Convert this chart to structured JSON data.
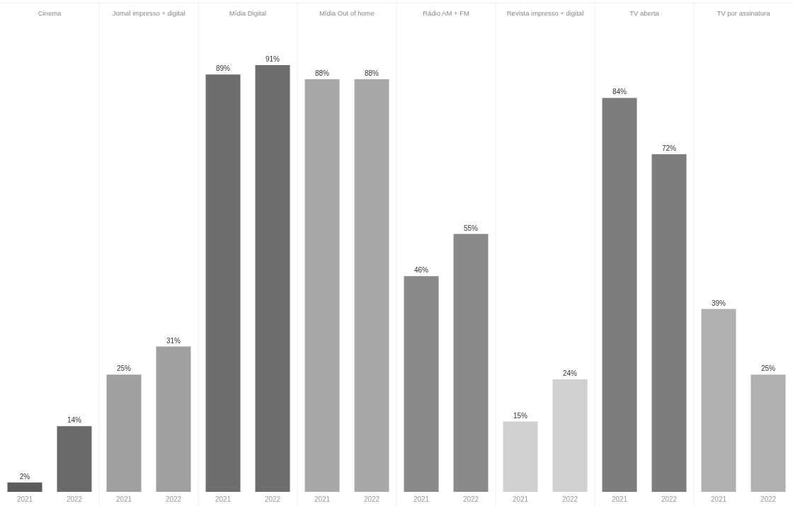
{
  "chart_data": [
    {
      "type": "bar",
      "title": "Cinema",
      "categories": [
        "2021",
        "2022"
      ],
      "values": [
        2,
        14
      ],
      "value_labels": [
        "2%",
        "14%"
      ],
      "colors": [
        "#5c5c5c",
        "#6a6a6a"
      ]
    },
    {
      "type": "bar",
      "title": "Jornal impresso + digital",
      "categories": [
        "2021",
        "2022"
      ],
      "values": [
        25,
        31
      ],
      "value_labels": [
        "25%",
        "31%"
      ],
      "colors": [
        "#a0a0a0",
        "#a0a0a0"
      ]
    },
    {
      "type": "bar",
      "title": "Mídia Digital",
      "categories": [
        "2021",
        "2022"
      ],
      "values": [
        89,
        91
      ],
      "value_labels": [
        "89%",
        "91%"
      ],
      "colors": [
        "#6e6e6e",
        "#6e6e6e"
      ]
    },
    {
      "type": "bar",
      "title": "Mídia Out of home",
      "categories": [
        "2021",
        "2022"
      ],
      "values": [
        88,
        88
      ],
      "value_labels": [
        "88%",
        "88%"
      ],
      "colors": [
        "#a8a8a8",
        "#a8a8a8"
      ]
    },
    {
      "type": "bar",
      "title": "Rádio AM + FM",
      "categories": [
        "2021",
        "2022"
      ],
      "values": [
        46,
        55
      ],
      "value_labels": [
        "46%",
        "55%"
      ],
      "colors": [
        "#8a8a8a",
        "#8a8a8a"
      ]
    },
    {
      "type": "bar",
      "title": "Revista impresso + digital",
      "categories": [
        "2021",
        "2022"
      ],
      "values": [
        15,
        24
      ],
      "value_labels": [
        "15%",
        "24%"
      ],
      "colors": [
        "#d0d0d0",
        "#d0d0d0"
      ]
    },
    {
      "type": "bar",
      "title": "TV aberta",
      "categories": [
        "2021",
        "2022"
      ],
      "values": [
        84,
        72
      ],
      "value_labels": [
        "84%",
        "72%"
      ],
      "colors": [
        "#7d7d7d",
        "#7d7d7d"
      ]
    },
    {
      "type": "bar",
      "title": "TV por assinatura",
      "categories": [
        "2021",
        "2022"
      ],
      "values": [
        39,
        25
      ],
      "value_labels": [
        "39%",
        "25%"
      ],
      "colors": [
        "#b0b0b0",
        "#b0b0b0"
      ]
    }
  ]
}
